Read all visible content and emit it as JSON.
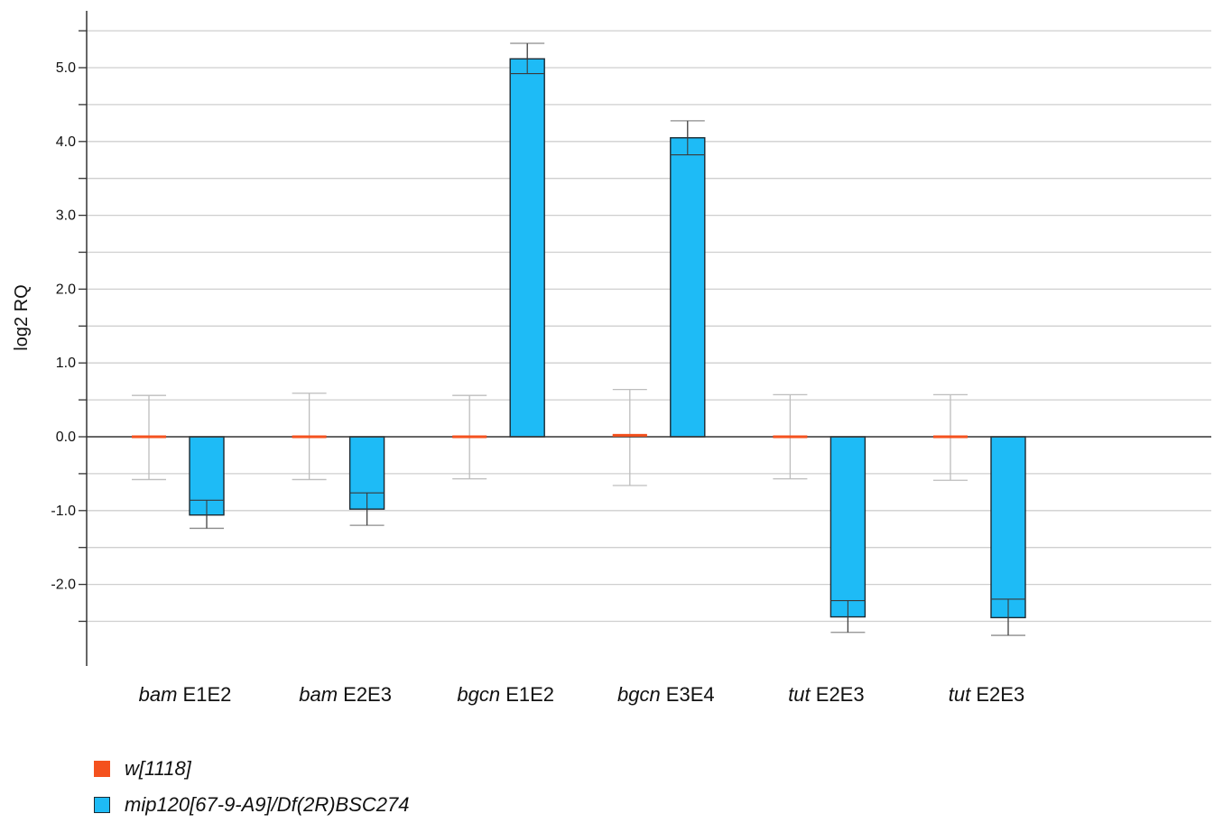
{
  "chart_data": {
    "type": "bar",
    "ylabel": "log2 RQ",
    "xlabel": "",
    "ylim": [
      -3.0,
      5.6
    ],
    "yticks": [
      {
        "value": 5.0,
        "label": "5.0"
      },
      {
        "value": 4.0,
        "label": "4.0"
      },
      {
        "value": 3.0,
        "label": "3.0"
      },
      {
        "value": 2.0,
        "label": "2.0"
      },
      {
        "value": 1.0,
        "label": "1.0"
      },
      {
        "value": 0.0,
        "label": "0.0"
      },
      {
        "value": -1.0,
        "label": "-1.0"
      },
      {
        "value": -2.0,
        "label": "-2.0"
      }
    ],
    "grid": true,
    "legend_position": "bottom-left",
    "categories": [
      {
        "gene": "bam",
        "label": "E1E2"
      },
      {
        "gene": "bam",
        "label": "E2E3"
      },
      {
        "gene": "bgcn",
        "label": "E1E2"
      },
      {
        "gene": "bgcn",
        "label": "E3E4"
      },
      {
        "gene": "tut",
        "label": "E2E3"
      },
      {
        "gene": "tut",
        "label": "E2E3"
      }
    ],
    "series": [
      {
        "name": "w[1118]",
        "color": "#f4511e",
        "values": [
          0.0,
          0.0,
          0.0,
          0.02,
          0.0,
          0.0
        ],
        "err_low": [
          -0.58,
          -0.58,
          -0.57,
          -0.66,
          -0.57,
          -0.59
        ],
        "err_high": [
          0.56,
          0.59,
          0.56,
          0.64,
          0.57,
          0.57
        ]
      },
      {
        "name": "mip120[67-9-A9]/Df(2R)BSC274",
        "color": "#1ebbf6",
        "values": [
          -1.06,
          -0.98,
          5.12,
          4.05,
          -2.44,
          -2.45
        ],
        "err_low": [
          -1.24,
          -1.2,
          4.92,
          3.82,
          -2.65,
          -2.69
        ],
        "err_high": [
          -0.86,
          -0.76,
          5.33,
          4.28,
          -2.22,
          -2.2
        ]
      }
    ]
  }
}
